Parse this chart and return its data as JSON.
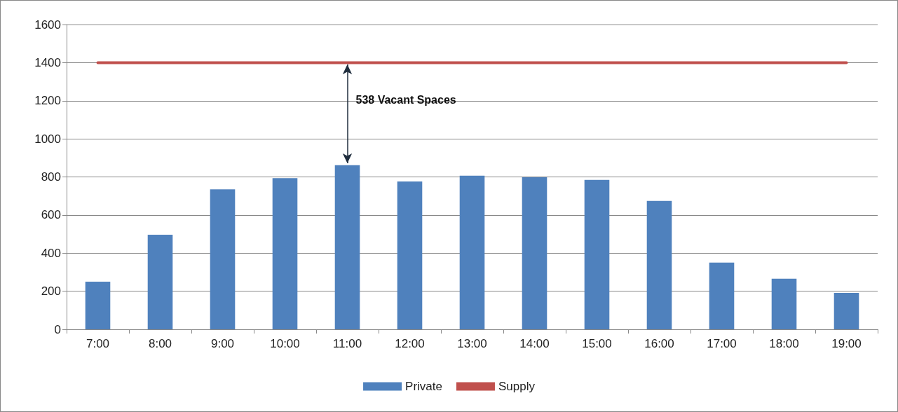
{
  "chart_data": {
    "type": "bar",
    "categories": [
      "7:00",
      "8:00",
      "9:00",
      "10:00",
      "11:00",
      "12:00",
      "13:00",
      "14:00",
      "15:00",
      "16:00",
      "17:00",
      "18:00",
      "19:00"
    ],
    "series": [
      {
        "name": "Private",
        "color": "#4f81bd",
        "values": [
          250,
          497,
          735,
          794,
          862,
          776,
          806,
          798,
          784,
          674,
          350,
          266,
          191
        ]
      },
      {
        "name": "Supply",
        "type": "line",
        "color": "#c0504d",
        "values": [
          1400,
          1400,
          1400,
          1400,
          1400,
          1400,
          1400,
          1400,
          1400,
          1400,
          1400,
          1400,
          1400
        ]
      }
    ],
    "ylim": [
      0,
      1600
    ],
    "yticks": [
      0,
      200,
      400,
      600,
      800,
      1000,
      1200,
      1400,
      1600
    ],
    "grid": "y",
    "legend": "bottom",
    "marker": "none",
    "line_style": "solid",
    "annotations": [
      "538 Vacant Spaces"
    ]
  }
}
